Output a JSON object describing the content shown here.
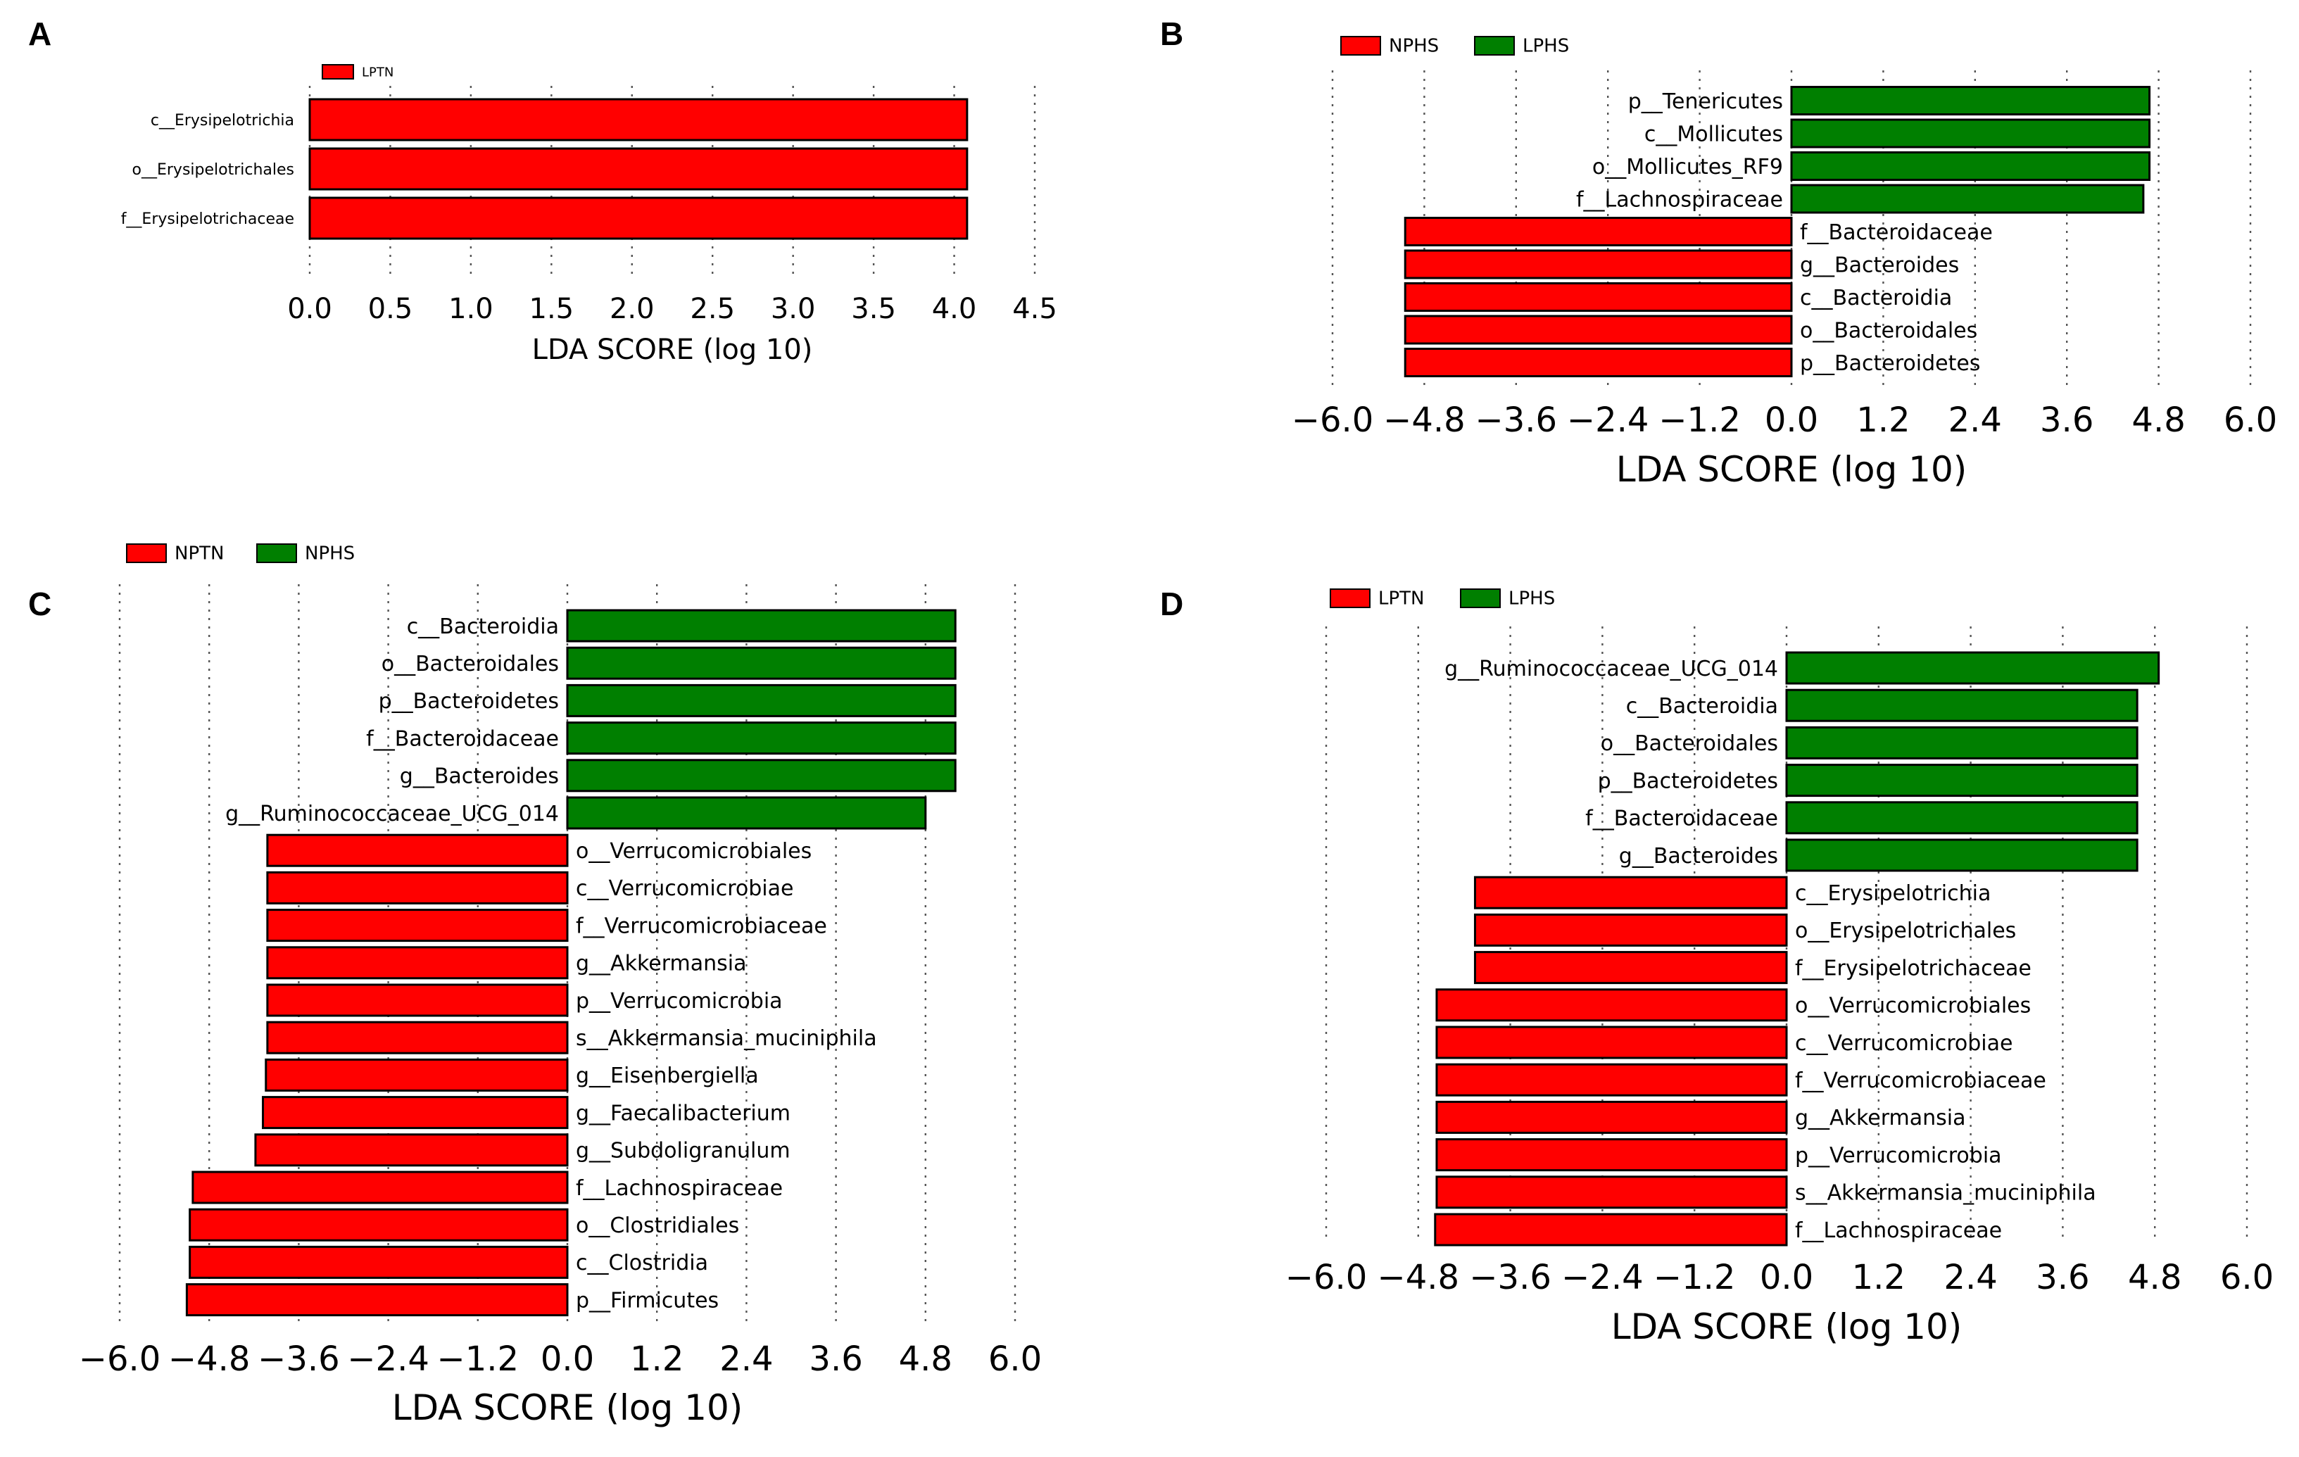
{
  "colors": {
    "red": "#ff0000",
    "green": "#007f00"
  },
  "chart_data": [
    {
      "panel": "A",
      "type": "bar",
      "orientation": "horizontal",
      "legend": [
        "LPTN"
      ],
      "legend_colors": [
        "#ff0000"
      ],
      "xlabel": "LDA SCORE (log 10)",
      "xlim": [
        0,
        4.5
      ],
      "xticks": [
        0.0,
        0.5,
        1.0,
        1.5,
        2.0,
        2.5,
        3.0,
        3.5,
        4.0,
        4.5
      ],
      "xtick_labels": [
        "0.0",
        "0.5",
        "1.0",
        "1.5",
        "2.0",
        "2.5",
        "3.0",
        "3.5",
        "4.0",
        "4.5"
      ],
      "bars": [
        {
          "label": "c__Erysipelotrichia",
          "value": 4.08,
          "group": 0
        },
        {
          "label": "o__Erysipelotrichales",
          "value": 4.08,
          "group": 0
        },
        {
          "label": "f__Erysipelotrichaceae",
          "value": 4.08,
          "group": 0
        }
      ]
    },
    {
      "panel": "B",
      "type": "bar",
      "orientation": "horizontal",
      "legend": [
        "NPHS",
        "LPHS"
      ],
      "legend_colors": [
        "#ff0000",
        "#007f00"
      ],
      "xlabel": "LDA SCORE (log 10)",
      "xlim": [
        -6.0,
        6.0
      ],
      "xticks": [
        -6.0,
        -4.8,
        -3.6,
        -2.4,
        -1.2,
        0.0,
        1.2,
        2.4,
        3.6,
        4.8,
        6.0
      ],
      "xtick_labels": [
        "−6.0",
        "−4.8",
        "−3.6",
        "−2.4",
        "−1.2",
        "0.0",
        "1.2",
        "2.4",
        "3.6",
        "4.8",
        "6.0"
      ],
      "bars": [
        {
          "label": "p__Tenericutes",
          "value": 4.68,
          "group": 1
        },
        {
          "label": "c__Mollicutes",
          "value": 4.68,
          "group": 1
        },
        {
          "label": "o__Mollicutes_RF9",
          "value": 4.68,
          "group": 1
        },
        {
          "label": "f__Lachnospiraceae",
          "value": 4.6,
          "group": 1
        },
        {
          "label": "f__Bacteroidaceae",
          "value": -5.05,
          "group": 0
        },
        {
          "label": "g__Bacteroides",
          "value": -5.05,
          "group": 0
        },
        {
          "label": "c__Bacteroidia",
          "value": -5.05,
          "group": 0
        },
        {
          "label": "o__Bacteroidales",
          "value": -5.05,
          "group": 0
        },
        {
          "label": "p__Bacteroidetes",
          "value": -5.05,
          "group": 0
        }
      ]
    },
    {
      "panel": "C",
      "type": "bar",
      "orientation": "horizontal",
      "legend": [
        "NPTN",
        "NPHS"
      ],
      "legend_colors": [
        "#ff0000",
        "#007f00"
      ],
      "xlabel": "LDA SCORE (log 10)",
      "xlim": [
        -6.0,
        6.0
      ],
      "xticks": [
        -6.0,
        -4.8,
        -3.6,
        -2.4,
        -1.2,
        0.0,
        1.2,
        2.4,
        3.6,
        4.8,
        6.0
      ],
      "xtick_labels": [
        "−6.0",
        "−4.8",
        "−3.6",
        "−2.4",
        "−1.2",
        "0.0",
        "1.2",
        "2.4",
        "3.6",
        "4.8",
        "6.0"
      ],
      "bars": [
        {
          "label": "c__Bacteroidia",
          "value": 5.2,
          "group": 1
        },
        {
          "label": "o__Bacteroidales",
          "value": 5.2,
          "group": 1
        },
        {
          "label": "p__Bacteroidetes",
          "value": 5.2,
          "group": 1
        },
        {
          "label": "f__Bacteroidaceae",
          "value": 5.2,
          "group": 1
        },
        {
          "label": "g__Bacteroides",
          "value": 5.2,
          "group": 1
        },
        {
          "label": "g__Ruminococcaceae_UCG_014",
          "value": 4.8,
          "group": 1
        },
        {
          "label": "o__Verrucomicrobiales",
          "value": -4.02,
          "group": 0
        },
        {
          "label": "c__Verrucomicrobiae",
          "value": -4.02,
          "group": 0
        },
        {
          "label": "f__Verrucomicrobiaceae",
          "value": -4.02,
          "group": 0
        },
        {
          "label": "g__Akkermansia",
          "value": -4.02,
          "group": 0
        },
        {
          "label": "p__Verrucomicrobia",
          "value": -4.02,
          "group": 0
        },
        {
          "label": "s__Akkermansia_muciniphila",
          "value": -4.02,
          "group": 0
        },
        {
          "label": "g__Eisenbergiella",
          "value": -4.04,
          "group": 0
        },
        {
          "label": "g__Faecalibacterium",
          "value": -4.08,
          "group": 0
        },
        {
          "label": "g__Subdoligranulum",
          "value": -4.18,
          "group": 0
        },
        {
          "label": "f__Lachnospiraceae",
          "value": -5.02,
          "group": 0
        },
        {
          "label": "o__Clostridiales",
          "value": -5.06,
          "group": 0
        },
        {
          "label": "c__Clostridia",
          "value": -5.06,
          "group": 0
        },
        {
          "label": "p__Firmicutes",
          "value": -5.1,
          "group": 0
        }
      ]
    },
    {
      "panel": "D",
      "type": "bar",
      "orientation": "horizontal",
      "legend": [
        "LPTN",
        "LPHS"
      ],
      "legend_colors": [
        "#ff0000",
        "#007f00"
      ],
      "xlabel": "LDA SCORE (log 10)",
      "xlim": [
        -6.0,
        6.0
      ],
      "xticks": [
        -6.0,
        -4.8,
        -3.6,
        -2.4,
        -1.2,
        0.0,
        1.2,
        2.4,
        3.6,
        4.8,
        6.0
      ],
      "xtick_labels": [
        "−6.0",
        "−4.8",
        "−3.6",
        "−2.4",
        "−1.2",
        "0.0",
        "1.2",
        "2.4",
        "3.6",
        "4.8",
        "6.0"
      ],
      "bars": [
        {
          "label": "g__Ruminococcaceae_UCG_014",
          "value": 4.85,
          "group": 1
        },
        {
          "label": "c__Bacteroidia",
          "value": 4.57,
          "group": 1
        },
        {
          "label": "o__Bacteroidales",
          "value": 4.57,
          "group": 1
        },
        {
          "label": "p__Bacteroidetes",
          "value": 4.57,
          "group": 1
        },
        {
          "label": "f__Bacteroidaceae",
          "value": 4.57,
          "group": 1
        },
        {
          "label": "g__Bacteroides",
          "value": 4.57,
          "group": 1
        },
        {
          "label": "c__Erysipelotrichia",
          "value": -4.06,
          "group": 0
        },
        {
          "label": "o__Erysipelotrichales",
          "value": -4.06,
          "group": 0
        },
        {
          "label": "f__Erysipelotrichaceae",
          "value": -4.06,
          "group": 0
        },
        {
          "label": "o__Verrucomicrobiales",
          "value": -4.56,
          "group": 0
        },
        {
          "label": "c__Verrucomicrobiae",
          "value": -4.56,
          "group": 0
        },
        {
          "label": "f__Verrucomicrobiaceae",
          "value": -4.56,
          "group": 0
        },
        {
          "label": "g__Akkermansia",
          "value": -4.56,
          "group": 0
        },
        {
          "label": "p__Verrucomicrobia",
          "value": -4.56,
          "group": 0
        },
        {
          "label": "s__Akkermansia_muciniphila",
          "value": -4.56,
          "group": 0
        },
        {
          "label": "f__Lachnospiraceae",
          "value": -4.58,
          "group": 0
        }
      ]
    }
  ]
}
